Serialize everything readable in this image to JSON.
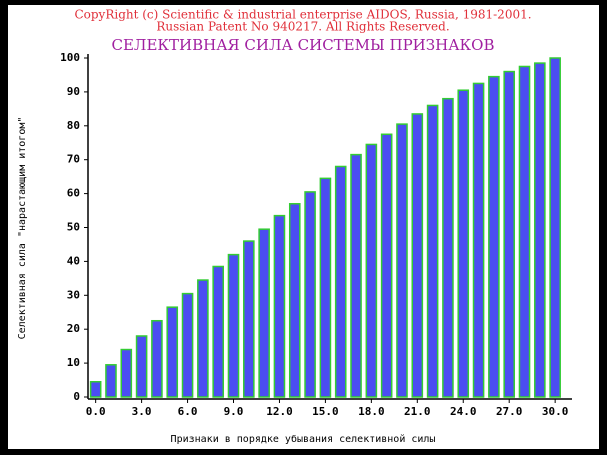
{
  "chart_data": {
    "type": "bar",
    "copyright": "CopyRight (c) Scientific & industrial enterprise AIDOS, Russia, 1981-2001.",
    "patent": "Russian Patent No 940217. All Rights Reserved.",
    "title": "СЕЛЕКТИВНАЯ СИЛА СИСТЕМЫ ПРИЗНАКОВ",
    "x_label": "Признаки в порядке убывания селективной силы",
    "y_label": "Селективная сила \"нарастающим итогом\"",
    "x": [
      0,
      1,
      2,
      3,
      4,
      5,
      6,
      7,
      8,
      9,
      10,
      11,
      12,
      13,
      14,
      15,
      16,
      17,
      18,
      19,
      20,
      21,
      22,
      23,
      24,
      25,
      26,
      27,
      28,
      29,
      30
    ],
    "values": [
      4.5,
      9.5,
      14,
      18,
      22.5,
      26.5,
      30.5,
      34.5,
      38.5,
      42,
      46,
      49.5,
      53.5,
      57,
      60.5,
      64.5,
      68,
      71.5,
      74.5,
      77.5,
      80.5,
      83.5,
      86,
      88,
      90.5,
      92.5,
      94.5,
      96,
      97.5,
      98.5,
      100
    ],
    "color": "#4b4df2",
    "edge_color": "#33cc33",
    "xlim": [
      -0.5,
      31.1
    ],
    "xticks": [
      {
        "value": 0,
        "label": "0.0"
      },
      {
        "value": 3,
        "label": "3.0"
      },
      {
        "value": 6,
        "label": "6.0"
      },
      {
        "value": 9,
        "label": "9.0"
      },
      {
        "value": 12,
        "label": "12.0"
      },
      {
        "value": 15,
        "label": "15.0"
      },
      {
        "value": 18,
        "label": "18.0"
      },
      {
        "value": 21,
        "label": "21.0"
      },
      {
        "value": 24,
        "label": "24.0"
      },
      {
        "value": 27,
        "label": "27.0"
      },
      {
        "value": 30,
        "label": "30.0"
      }
    ],
    "ylim": [
      0,
      100
    ],
    "yticks": [
      0,
      10,
      20,
      30,
      40,
      50,
      60,
      70,
      80,
      90,
      100
    ]
  }
}
